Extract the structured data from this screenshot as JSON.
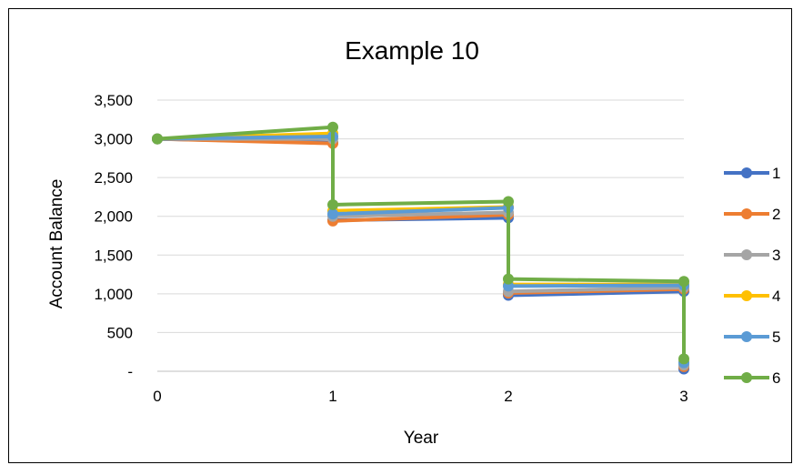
{
  "chart_data": {
    "type": "line",
    "title": "Example 10",
    "xlabel": "Year",
    "ylabel": "Account Balance",
    "x_ticks": [
      "0",
      "1",
      "2",
      "3"
    ],
    "y_ticks": [
      {
        "value": 0,
        "label": "-"
      },
      {
        "value": 500,
        "label": "500"
      },
      {
        "value": 1000,
        "label": "1,000"
      },
      {
        "value": 1500,
        "label": "1,500"
      },
      {
        "value": 2000,
        "label": "2,000"
      },
      {
        "value": 2500,
        "label": "2,500"
      },
      {
        "value": 3000,
        "label": "3,000"
      },
      {
        "value": 3500,
        "label": "3,500"
      }
    ],
    "xlim": [
      0,
      3
    ],
    "ylim": [
      0,
      3500
    ],
    "grid": "horizontal",
    "legend_position": "right",
    "series": [
      {
        "name": "1",
        "color": "#4472C4",
        "points": [
          [
            0,
            3000
          ],
          [
            1,
            2950
          ],
          [
            1,
            1950
          ],
          [
            2,
            1980
          ],
          [
            2,
            980
          ],
          [
            3,
            1030
          ],
          [
            3,
            30
          ]
        ]
      },
      {
        "name": "2",
        "color": "#ED7D31",
        "points": [
          [
            0,
            3000
          ],
          [
            1,
            2940
          ],
          [
            1,
            1940
          ],
          [
            2,
            2020
          ],
          [
            2,
            1010
          ],
          [
            3,
            1060
          ],
          [
            3,
            60
          ]
        ]
      },
      {
        "name": "3",
        "color": "#A5A5A5",
        "points": [
          [
            0,
            3000
          ],
          [
            1,
            3000
          ],
          [
            1,
            2000
          ],
          [
            2,
            2050
          ],
          [
            2,
            1030
          ],
          [
            3,
            1080
          ],
          [
            3,
            80
          ]
        ]
      },
      {
        "name": "4",
        "color": "#FFC000",
        "points": [
          [
            0,
            3000
          ],
          [
            1,
            3070
          ],
          [
            1,
            2070
          ],
          [
            2,
            2120
          ],
          [
            2,
            1120
          ],
          [
            3,
            1120
          ],
          [
            3,
            120
          ]
        ]
      },
      {
        "name": "5",
        "color": "#5B9BD5",
        "points": [
          [
            0,
            3000
          ],
          [
            1,
            3030
          ],
          [
            1,
            2030
          ],
          [
            2,
            2110
          ],
          [
            2,
            1100
          ],
          [
            3,
            1110
          ],
          [
            3,
            110
          ]
        ]
      },
      {
        "name": "6",
        "color": "#70AD47",
        "points": [
          [
            0,
            3000
          ],
          [
            1,
            3150
          ],
          [
            1,
            2150
          ],
          [
            2,
            2190
          ],
          [
            2,
            1190
          ],
          [
            3,
            1160
          ],
          [
            3,
            160
          ]
        ]
      }
    ],
    "gridline_color": "#D9D9D9",
    "axis_color": "#BFBFBF"
  }
}
